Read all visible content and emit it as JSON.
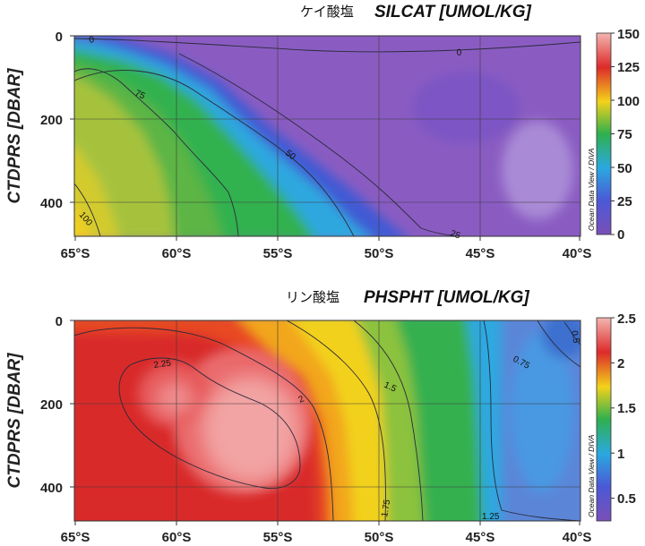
{
  "chart_data": [
    {
      "type": "heatmap",
      "title_jp": "ケイ酸塩",
      "title": "SILCAT [UMOL/KG]",
      "ylabel": "CTDPRS [DBAR]",
      "xlabel": "",
      "x_tick_labels": [
        "65°S",
        "60°S",
        "55°S",
        "50°S",
        "45°S",
        "40°S"
      ],
      "y_tick_labels": [
        "0",
        "200",
        "400"
      ],
      "xlim": [
        -65,
        -40
      ],
      "ylim": [
        0,
        480
      ],
      "colorbar": {
        "min": 0,
        "max": 150,
        "ticks": [
          "0",
          "25",
          "50",
          "75",
          "100",
          "125",
          "150"
        ]
      },
      "contour_labels": [
        "0",
        "0",
        "75",
        "50",
        "100",
        "25"
      ],
      "grid": true,
      "watermark": "Ocean Data View / DIVA"
    },
    {
      "type": "heatmap",
      "title_jp": "リン酸塩",
      "title": "PHSPHT [UMOL/KG]",
      "ylabel": "CTDPRS [DBAR]",
      "xlabel": "",
      "x_tick_labels": [
        "65°S",
        "60°S",
        "55°S",
        "50°S",
        "45°S",
        "40°S"
      ],
      "y_tick_labels": [
        "0",
        "200",
        "400"
      ],
      "xlim": [
        -65,
        -40
      ],
      "ylim": [
        0,
        480
      ],
      "colorbar": {
        "min": 0.25,
        "max": 2.5,
        "ticks": [
          "0.5",
          "1",
          "1.5",
          "2",
          "2.5"
        ]
      },
      "contour_labels": [
        "2.25",
        "2",
        "1.5",
        "1.75",
        "1.25",
        "0.75",
        "0.5"
      ],
      "grid": true,
      "watermark": "Ocean Data View / DIVA"
    }
  ]
}
